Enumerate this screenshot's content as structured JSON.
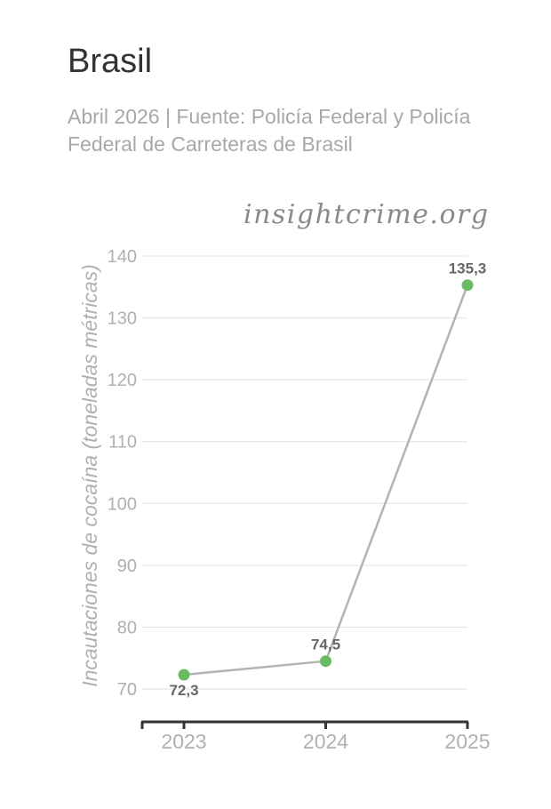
{
  "header": {
    "title": "Brasil",
    "subtitle": "Abril 2026 | Fuente: Policía Federal y Policía Federal de Carreteras de Brasil",
    "watermark": "insightcrime.org"
  },
  "colors": {
    "line": "#b3b3b3",
    "point": "#6aba61",
    "grid": "#e2e2e2",
    "axis_text": "#b0b0b0",
    "data_label": "#666666",
    "x_axis": "#333333"
  },
  "chart_data": {
    "type": "line",
    "title": "Brasil",
    "subtitle": "Abril 2026 | Fuente: Policía Federal y Policía Federal de Carreteras de Brasil",
    "xlabel": "",
    "ylabel": "Incautaciones de cocaína (toneladas métricas)",
    "categories": [
      "2023",
      "2024",
      "2025"
    ],
    "series": [
      {
        "values": [
          72.3,
          74.5,
          135.3
        ]
      }
    ],
    "data_labels": [
      "72,3",
      "74,5",
      "135,3"
    ],
    "yticks": [
      70,
      80,
      90,
      100,
      110,
      120,
      130,
      140
    ],
    "ylim": [
      65,
      140
    ],
    "grid": true,
    "legend": "none"
  }
}
